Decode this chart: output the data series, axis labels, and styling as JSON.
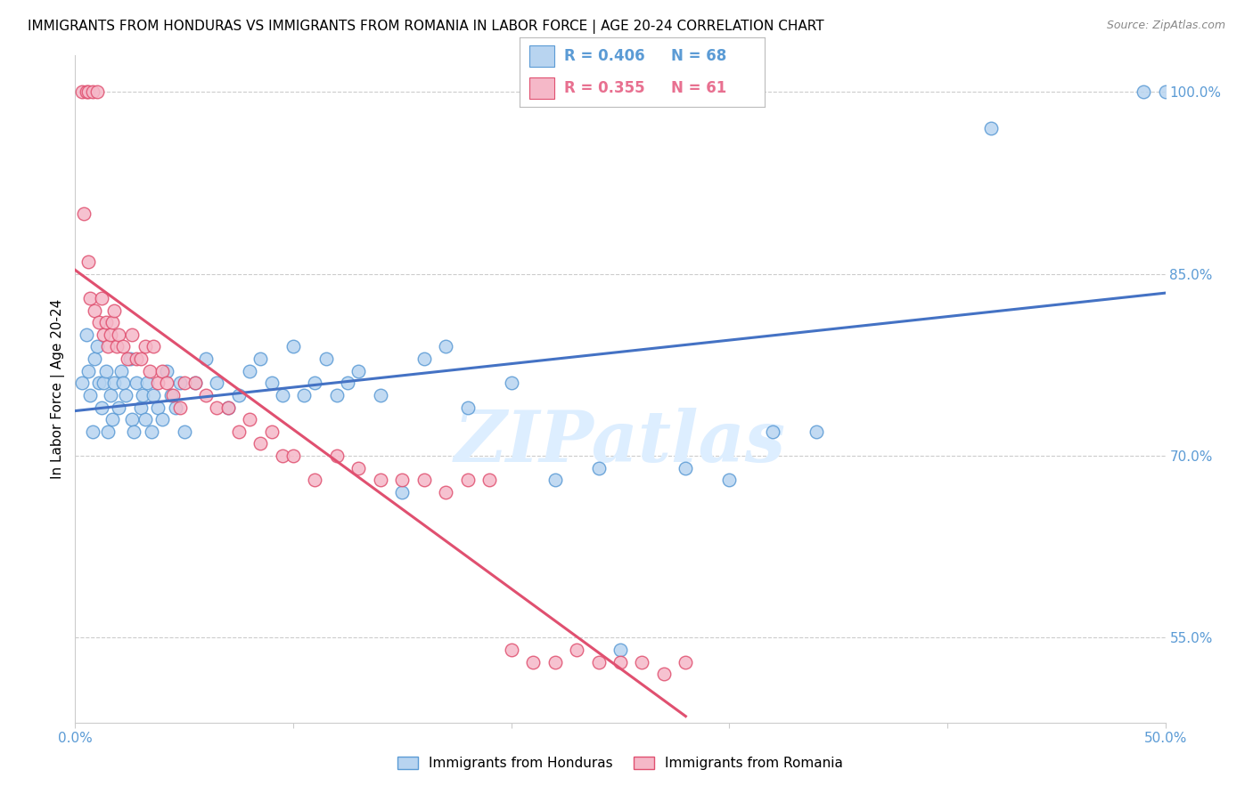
{
  "title": "IMMIGRANTS FROM HONDURAS VS IMMIGRANTS FROM ROMANIA IN LABOR FORCE | AGE 20-24 CORRELATION CHART",
  "source": "Source: ZipAtlas.com",
  "ylabel": "In Labor Force | Age 20-24",
  "xlim": [
    0.0,
    0.5
  ],
  "ylim": [
    0.48,
    1.03
  ],
  "xticks": [
    0.0,
    0.1,
    0.2,
    0.3,
    0.4,
    0.5
  ],
  "xticklabels": [
    "0.0%",
    "",
    "",
    "",
    "",
    "50.0%"
  ],
  "yticks_right": [
    0.55,
    0.7,
    0.85,
    1.0
  ],
  "yticklabels_right": [
    "55.0%",
    "70.0%",
    "85.0%",
    "100.0%"
  ],
  "tick_color": "#5b9bd5",
  "grid_color": "#cccccc",
  "watermark_text": "ZIPatlas",
  "watermark_color": "#ddeeff",
  "legend_R1": "0.406",
  "legend_N1": "68",
  "legend_R2": "0.355",
  "legend_N2": "61",
  "legend_color1": "#5b9bd5",
  "legend_color2": "#e87090",
  "honduras_color": "#b8d4f0",
  "honduras_edge": "#5b9bd5",
  "romania_color": "#f5b8c8",
  "romania_edge": "#e05070",
  "honduras_line_color": "#4472c4",
  "romania_line_color": "#e05070",
  "honduras_x": [
    0.003,
    0.005,
    0.006,
    0.007,
    0.008,
    0.009,
    0.01,
    0.011,
    0.012,
    0.013,
    0.014,
    0.015,
    0.016,
    0.017,
    0.018,
    0.02,
    0.021,
    0.022,
    0.023,
    0.025,
    0.026,
    0.027,
    0.028,
    0.03,
    0.031,
    0.032,
    0.033,
    0.035,
    0.036,
    0.038,
    0.04,
    0.042,
    0.044,
    0.046,
    0.048,
    0.05,
    0.055,
    0.06,
    0.065,
    0.07,
    0.075,
    0.08,
    0.085,
    0.09,
    0.095,
    0.1,
    0.105,
    0.11,
    0.115,
    0.12,
    0.125,
    0.13,
    0.14,
    0.15,
    0.16,
    0.17,
    0.18,
    0.2,
    0.22,
    0.24,
    0.25,
    0.28,
    0.3,
    0.32,
    0.34,
    0.42,
    0.49,
    0.5
  ],
  "honduras_y": [
    0.76,
    0.8,
    0.77,
    0.75,
    0.72,
    0.78,
    0.79,
    0.76,
    0.74,
    0.76,
    0.77,
    0.72,
    0.75,
    0.73,
    0.76,
    0.74,
    0.77,
    0.76,
    0.75,
    0.78,
    0.73,
    0.72,
    0.76,
    0.74,
    0.75,
    0.73,
    0.76,
    0.72,
    0.75,
    0.74,
    0.73,
    0.77,
    0.75,
    0.74,
    0.76,
    0.72,
    0.76,
    0.78,
    0.76,
    0.74,
    0.75,
    0.77,
    0.78,
    0.76,
    0.75,
    0.79,
    0.75,
    0.76,
    0.78,
    0.75,
    0.76,
    0.77,
    0.75,
    0.67,
    0.78,
    0.79,
    0.74,
    0.76,
    0.68,
    0.69,
    0.54,
    0.69,
    0.68,
    0.72,
    0.72,
    0.97,
    1.0,
    1.0
  ],
  "romania_x": [
    0.003,
    0.004,
    0.005,
    0.006,
    0.006,
    0.007,
    0.008,
    0.009,
    0.01,
    0.011,
    0.012,
    0.013,
    0.014,
    0.015,
    0.016,
    0.017,
    0.018,
    0.019,
    0.02,
    0.022,
    0.024,
    0.026,
    0.028,
    0.03,
    0.032,
    0.034,
    0.036,
    0.038,
    0.04,
    0.042,
    0.045,
    0.048,
    0.05,
    0.055,
    0.06,
    0.065,
    0.07,
    0.075,
    0.08,
    0.085,
    0.09,
    0.095,
    0.1,
    0.11,
    0.12,
    0.13,
    0.14,
    0.15,
    0.16,
    0.17,
    0.18,
    0.19,
    0.2,
    0.21,
    0.22,
    0.23,
    0.24,
    0.25,
    0.26,
    0.27,
    0.28
  ],
  "romania_y": [
    1.0,
    0.9,
    1.0,
    0.86,
    1.0,
    0.83,
    1.0,
    0.82,
    1.0,
    0.81,
    0.83,
    0.8,
    0.81,
    0.79,
    0.8,
    0.81,
    0.82,
    0.79,
    0.8,
    0.79,
    0.78,
    0.8,
    0.78,
    0.78,
    0.79,
    0.77,
    0.79,
    0.76,
    0.77,
    0.76,
    0.75,
    0.74,
    0.76,
    0.76,
    0.75,
    0.74,
    0.74,
    0.72,
    0.73,
    0.71,
    0.72,
    0.7,
    0.7,
    0.68,
    0.7,
    0.69,
    0.68,
    0.68,
    0.68,
    0.67,
    0.68,
    0.68,
    0.54,
    0.53,
    0.53,
    0.54,
    0.53,
    0.53,
    0.53,
    0.52,
    0.53
  ]
}
